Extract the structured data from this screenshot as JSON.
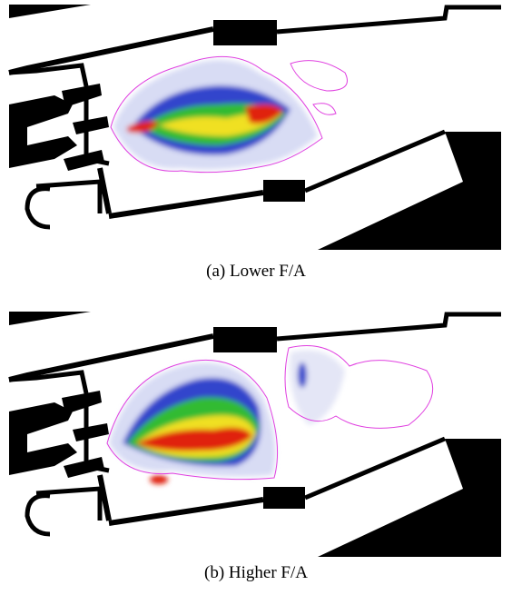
{
  "panels": [
    {
      "caption": "(a) Lower F/A"
    },
    {
      "caption": "(b) Higher F/A"
    }
  ]
}
